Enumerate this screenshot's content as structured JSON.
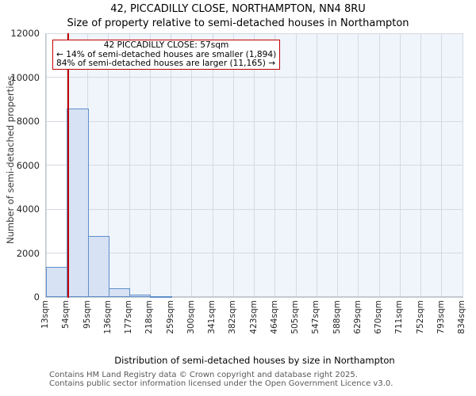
{
  "page": {
    "title": "42, PICCADILLY CLOSE, NORTHAMPTON, NN4 8RU",
    "subtitle": "Size of property relative to semi-detached houses in Northampton"
  },
  "chart_data": {
    "type": "bar",
    "title": "42, PICCADILLY CLOSE, NORTHAMPTON, NN4 8RU",
    "subtitle": "Size of property relative to semi-detached houses in Northampton",
    "xlabel": "Distribution of semi-detached houses by size in Northampton",
    "ylabel": "Number of semi-detached properties",
    "bin_size_sqm": 41,
    "bin_start_sqm": [
      13,
      54,
      95,
      136,
      177,
      218,
      259,
      300,
      341,
      382,
      423,
      464,
      505,
      547,
      588,
      629,
      670,
      711,
      752,
      793
    ],
    "values": [
      1370,
      8560,
      2760,
      410,
      120,
      50,
      0,
      0,
      0,
      0,
      0,
      0,
      0,
      0,
      0,
      0,
      0,
      0,
      0,
      0
    ],
    "x_tick_labels": [
      "13sqm",
      "54sqm",
      "95sqm",
      "136sqm",
      "177sqm",
      "218sqm",
      "259sqm",
      "300sqm",
      "341sqm",
      "382sqm",
      "423sqm",
      "464sqm",
      "505sqm",
      "547sqm",
      "588sqm",
      "629sqm",
      "670sqm",
      "711sqm",
      "752sqm",
      "793sqm",
      "834sqm"
    ],
    "y_tick_labels": [
      "0",
      "2000",
      "4000",
      "6000",
      "8000",
      "10000",
      "12000"
    ],
    "y_ticks": [
      0,
      2000,
      4000,
      6000,
      8000,
      10000,
      12000
    ],
    "xlim": [
      13,
      834
    ],
    "ylim": [
      0,
      12000
    ],
    "grid": true,
    "legend": "none",
    "marker": {
      "value_sqm": 57,
      "color": "#c00000"
    },
    "annotation": {
      "line1": "42 PICCADILLY CLOSE: 57sqm",
      "line2": "← 14% of semi-detached houses are smaller (1,894)",
      "line3": "84% of semi-detached houses are larger (11,165) →",
      "border_color": "#c00000"
    },
    "colors": {
      "bar_fill": "#d7e2f4",
      "bar_edge": "#5e8fca",
      "shade_right_of_marker": "#f0f4fb",
      "gridline": "#d5d9e1",
      "marker_line": "#c00000"
    }
  },
  "footer": {
    "line1": "Contains HM Land Registry data © Crown copyright and database right 2025.",
    "line2": "Contains public sector information licensed under the Open Government Licence v3.0."
  }
}
